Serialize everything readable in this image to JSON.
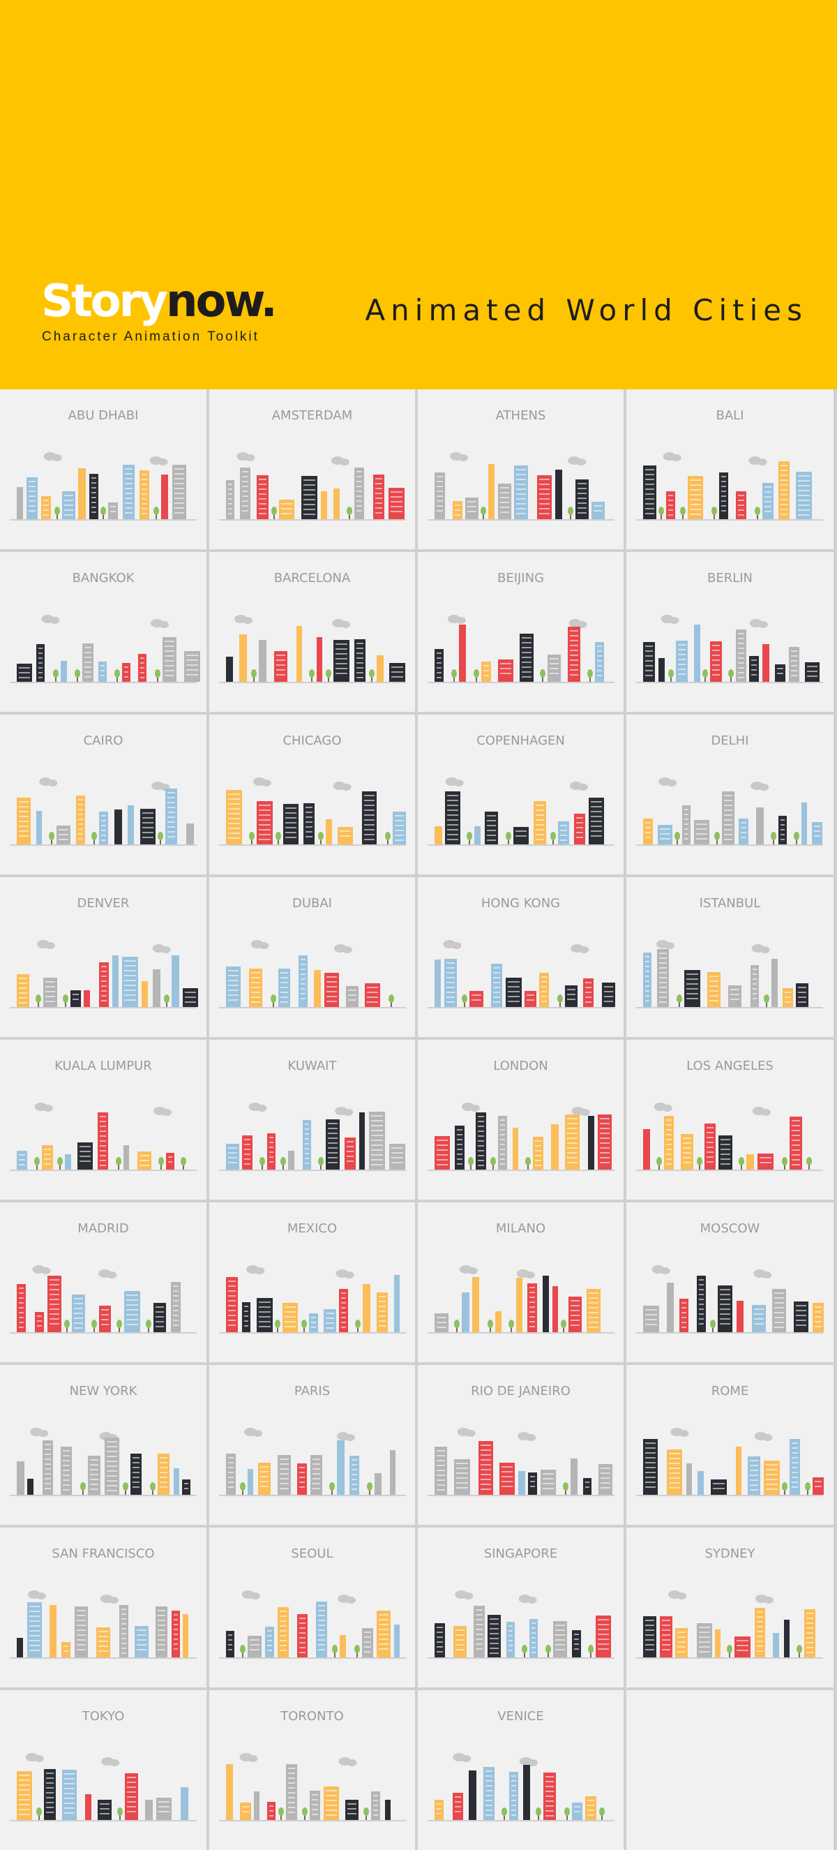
{
  "header": {
    "logo_part1": "Story",
    "logo_part2": "now.",
    "logo_tagline": "Character Animation Toolkit",
    "title": "Animated World Cities"
  },
  "palette": {
    "yellow": "#fec400",
    "red": "#e8474c",
    "blue": "#9ac2dd",
    "orange": "#fbbd58",
    "dark": "#2b2d35",
    "gray": "#b5b5b5",
    "green": "#8cc15e",
    "cloud": "#c9c9c9"
  },
  "cities": [
    {
      "name": "ABU DHABI"
    },
    {
      "name": "AMSTERDAM"
    },
    {
      "name": "ATHENS"
    },
    {
      "name": "BALI"
    },
    {
      "name": "BANGKOK"
    },
    {
      "name": "BARCELONA"
    },
    {
      "name": "BEIJING"
    },
    {
      "name": "BERLIN"
    },
    {
      "name": "CAIRO"
    },
    {
      "name": "CHICAGO"
    },
    {
      "name": "COPENHAGEN"
    },
    {
      "name": "DELHI"
    },
    {
      "name": "DENVER"
    },
    {
      "name": "DUBAI"
    },
    {
      "name": "HONG KONG"
    },
    {
      "name": "ISTANBUL"
    },
    {
      "name": "KUALA LUMPUR"
    },
    {
      "name": "KUWAIT"
    },
    {
      "name": "LONDON"
    },
    {
      "name": "LOS ANGELES"
    },
    {
      "name": "MADRID"
    },
    {
      "name": "MEXICO"
    },
    {
      "name": "MILANO"
    },
    {
      "name": "MOSCOW"
    },
    {
      "name": "NEW YORK"
    },
    {
      "name": "PARIS"
    },
    {
      "name": "RIO DE JANEIRO"
    },
    {
      "name": "ROME"
    },
    {
      "name": "SAN FRANCISCO"
    },
    {
      "name": "SEOUL"
    },
    {
      "name": "SINGAPORE"
    },
    {
      "name": "SYDNEY"
    },
    {
      "name": "TOKYO"
    },
    {
      "name": "TORONTO"
    },
    {
      "name": "VENICE"
    }
  ]
}
